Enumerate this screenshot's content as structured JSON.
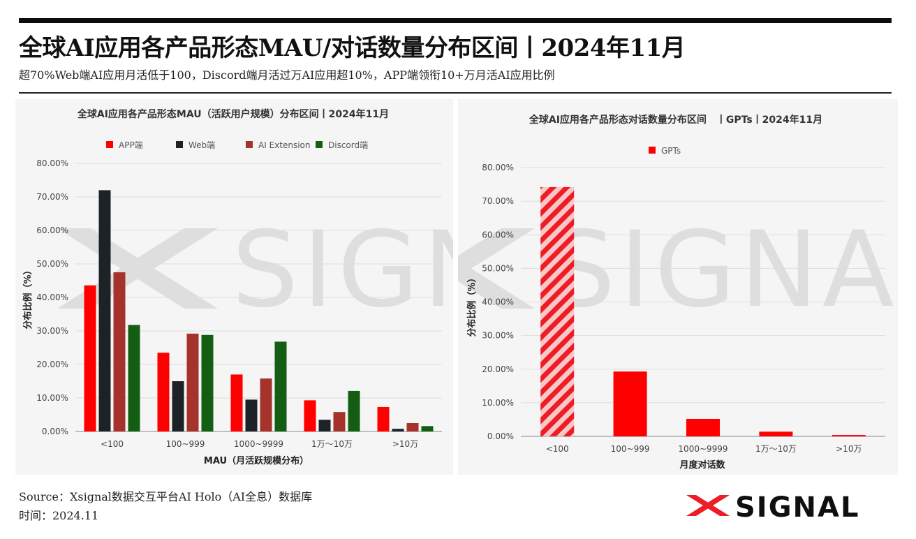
{
  "header": {
    "title": "全球AI应用各产品形态MAU/对话数量分布区间丨2024年11月",
    "subtitle": "超70%Web端AI应用月活低于100，Discord端月活过万AI应用超10%，APP端领衔10+万月活AI应用比例"
  },
  "footer": {
    "source": "Source：Xsignal数据交互平台AI Holo（AI全息）数据库",
    "time": "时间：2024.11"
  },
  "logo": {
    "text": "SIGNAL",
    "mark_color": "#ee1c25",
    "icon": "x-signal-logo-icon"
  },
  "watermark": {
    "text": "SIGNAL"
  },
  "chart_data": [
    {
      "type": "bar",
      "title": "全球AI应用各产品形态MAU（活跃用户规模）分布区间丨2024年11月",
      "xlabel": "MAU（月活跃规模分布）",
      "ylabel": "分布比例（%）",
      "ylim": [
        0,
        80
      ],
      "yticks": [
        "0.00%",
        "10.00%",
        "20.00%",
        "30.00%",
        "40.00%",
        "50.00%",
        "60.00%",
        "70.00%",
        "80.00%"
      ],
      "grid": true,
      "legend_position": "top",
      "categories": [
        "<100",
        "100~999",
        "1000~9999",
        "1万～10万",
        ">10万"
      ],
      "series": [
        {
          "name": "APP端",
          "color": "#ff0000",
          "values": [
            43.6,
            23.5,
            17.0,
            9.3,
            7.3
          ]
        },
        {
          "name": "Web端",
          "color": "#1c2226",
          "values": [
            72.0,
            15.0,
            9.5,
            3.5,
            0.8
          ]
        },
        {
          "name": "AI Extension",
          "color": "#a5332b",
          "values": [
            47.5,
            29.2,
            15.8,
            5.8,
            2.5
          ]
        },
        {
          "name": "Discord端",
          "color": "#135e13",
          "values": [
            31.8,
            28.8,
            26.8,
            12.1,
            1.6
          ]
        }
      ]
    },
    {
      "type": "bar",
      "title": "全球AI应用各产品形态对话数量分布区间　丨GPTs丨2024年11月",
      "xlabel": "月度对话数",
      "ylabel": "分布比例（%）",
      "ylim": [
        0,
        80
      ],
      "yticks": [
        "0.00%",
        "10.00%",
        "20.00%",
        "30.00%",
        "40.00%",
        "50.00%",
        "60.00%",
        "70.00%",
        "80.00%"
      ],
      "grid": true,
      "legend_position": "top",
      "categories": [
        "<100",
        "100~999",
        "1000~9999",
        "1万～10万",
        ">10万"
      ],
      "series": [
        {
          "name": "GPTs",
          "color": "#ff0000",
          "values": [
            74.2,
            19.3,
            5.2,
            1.4,
            0.4
          ]
        }
      ],
      "highlight": {
        "category": "<100",
        "pattern": "diagonal-stripes",
        "stripe_colors": [
          "#ee1c25",
          "#f8c8c8"
        ]
      }
    }
  ]
}
